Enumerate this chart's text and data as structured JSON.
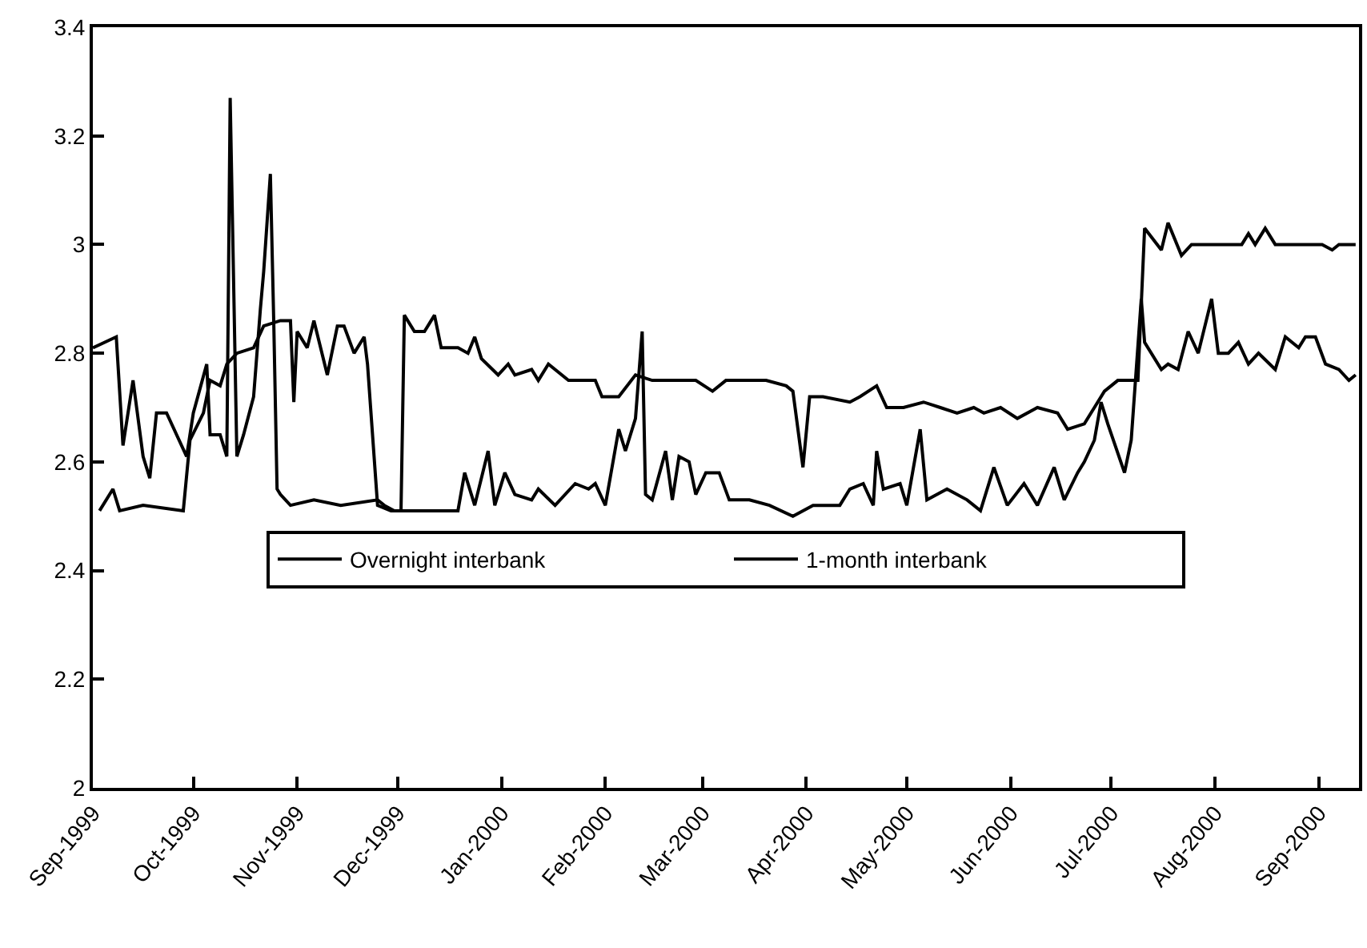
{
  "chart_data": {
    "type": "line",
    "xlim": [
      "1999-09-01",
      "2000-09-13"
    ],
    "ylim": [
      2,
      3.4
    ],
    "xticks": [
      {
        "value": "1999-09-01",
        "label": "Sep-1999"
      },
      {
        "value": "1999-10-01",
        "label": "Oct-1999"
      },
      {
        "value": "1999-11-01",
        "label": "Nov-1999"
      },
      {
        "value": "1999-12-01",
        "label": "Dec-1999"
      },
      {
        "value": "2000-01-01",
        "label": "Jan-2000"
      },
      {
        "value": "2000-02-01",
        "label": "Feb-2000"
      },
      {
        "value": "2000-03-01",
        "label": "Mar-2000"
      },
      {
        "value": "2000-04-01",
        "label": "Apr-2000"
      },
      {
        "value": "2000-05-01",
        "label": "May-2000"
      },
      {
        "value": "2000-06-01",
        "label": "Jun-2000"
      },
      {
        "value": "2000-07-01",
        "label": "Jul-2000"
      },
      {
        "value": "2000-08-01",
        "label": "Aug-2000"
      },
      {
        "value": "2000-09-01",
        "label": "Sep-2000"
      }
    ],
    "yticks": [
      2,
      2.2,
      2.4,
      2.6,
      2.8,
      3,
      3.2,
      3.4
    ],
    "grid": false,
    "legend": "center",
    "marker": "none",
    "line_style": "solid",
    "series": [
      {
        "name": "Overnight interbank",
        "color": "#000000",
        "x": [
          "1999-09-01",
          "1999-09-08",
          "1999-09-10",
          "1999-09-13",
          "1999-09-16",
          "1999-09-18",
          "1999-09-20",
          "1999-09-23",
          "1999-09-29",
          "1999-10-01",
          "1999-10-05",
          "1999-10-06",
          "1999-10-09",
          "1999-10-11",
          "1999-10-12",
          "1999-10-14",
          "1999-10-16",
          "1999-10-19",
          "1999-10-21",
          "1999-10-22",
          "1999-10-24",
          "1999-10-25",
          "1999-10-26",
          "1999-10-27",
          "1999-10-30",
          "1999-11-06",
          "1999-11-14",
          "1999-11-25",
          "1999-11-27",
          "1999-11-30",
          "1999-12-19",
          "1999-12-21",
          "1999-12-24",
          "1999-12-28",
          "1999-12-30",
          "2000-01-02",
          "2000-01-05",
          "2000-01-10",
          "2000-01-12",
          "2000-01-17",
          "2000-01-23",
          "2000-01-27",
          "2000-01-29",
          "2000-02-01",
          "2000-02-05",
          "2000-02-07",
          "2000-02-10",
          "2000-02-12",
          "2000-02-13",
          "2000-02-15",
          "2000-02-19",
          "2000-02-21",
          "2000-02-23",
          "2000-02-26",
          "2000-02-28",
          "2000-03-02",
          "2000-03-06",
          "2000-03-09",
          "2000-03-15",
          "2000-03-21",
          "2000-03-28",
          "2000-04-03",
          "2000-04-11",
          "2000-04-14",
          "2000-04-18",
          "2000-04-21",
          "2000-04-22",
          "2000-04-24",
          "2000-04-29",
          "2000-05-01",
          "2000-05-05",
          "2000-05-07",
          "2000-05-13",
          "2000-05-19",
          "2000-05-23",
          "2000-05-27",
          "2000-05-31",
          "2000-06-05",
          "2000-06-09",
          "2000-06-14",
          "2000-06-17",
          "2000-06-21",
          "2000-06-23",
          "2000-06-26",
          "2000-06-28",
          "2000-06-30",
          "2000-07-05",
          "2000-07-07",
          "2000-07-10",
          "2000-07-11",
          "2000-07-16",
          "2000-07-18",
          "2000-07-21",
          "2000-07-24",
          "2000-07-27",
          "2000-07-31",
          "2000-08-02",
          "2000-08-05",
          "2000-08-08",
          "2000-08-11",
          "2000-08-14",
          "2000-08-19",
          "2000-08-22",
          "2000-08-26",
          "2000-08-28",
          "2000-08-31",
          "2000-09-03",
          "2000-09-07",
          "2000-09-10",
          "2000-09-12"
        ],
        "values": [
          2.81,
          2.83,
          2.63,
          2.75,
          2.61,
          2.57,
          2.69,
          2.69,
          2.61,
          2.69,
          2.78,
          2.65,
          2.65,
          2.61,
          3.27,
          2.61,
          2.65,
          2.72,
          2.88,
          2.95,
          3.13,
          2.86,
          2.55,
          2.54,
          2.52,
          2.53,
          2.52,
          2.53,
          2.52,
          2.51,
          2.51,
          2.58,
          2.52,
          2.62,
          2.52,
          2.58,
          2.54,
          2.53,
          2.55,
          2.52,
          2.56,
          2.55,
          2.56,
          2.52,
          2.66,
          2.62,
          2.68,
          2.84,
          2.54,
          2.53,
          2.62,
          2.53,
          2.61,
          2.6,
          2.54,
          2.58,
          2.58,
          2.53,
          2.53,
          2.52,
          2.5,
          2.52,
          2.52,
          2.55,
          2.56,
          2.52,
          2.62,
          2.55,
          2.56,
          2.52,
          2.66,
          2.53,
          2.55,
          2.53,
          2.51,
          2.59,
          2.52,
          2.56,
          2.52,
          2.59,
          2.53,
          2.58,
          2.6,
          2.64,
          2.71,
          2.67,
          2.58,
          2.64,
          2.9,
          2.82,
          2.77,
          2.78,
          2.77,
          2.84,
          2.8,
          2.9,
          2.8,
          2.8,
          2.82,
          2.78,
          2.8,
          2.77,
          2.83,
          2.81,
          2.83,
          2.83,
          2.78,
          2.77,
          2.75,
          2.76
        ]
      },
      {
        "name": "1-month interbank",
        "color": "#000000",
        "x": [
          "1999-09-03",
          "1999-09-07",
          "1999-09-09",
          "1999-09-16",
          "1999-09-28",
          "1999-09-30",
          "1999-10-04",
          "1999-10-06",
          "1999-10-09",
          "1999-10-11",
          "1999-10-14",
          "1999-10-19",
          "1999-10-22",
          "1999-10-27",
          "1999-10-30",
          "1999-10-31",
          "1999-11-01",
          "1999-11-04",
          "1999-11-06",
          "1999-11-10",
          "1999-11-13",
          "1999-11-15",
          "1999-11-18",
          "1999-11-21",
          "1999-11-22",
          "1999-11-25",
          "1999-11-29",
          "1999-12-02",
          "1999-12-03",
          "1999-12-06",
          "1999-12-09",
          "1999-12-12",
          "1999-12-14",
          "1999-12-19",
          "1999-12-22",
          "1999-12-24",
          "1999-12-26",
          "1999-12-31",
          "2000-01-03",
          "2000-01-05",
          "2000-01-10",
          "2000-01-12",
          "2000-01-15",
          "2000-01-21",
          "2000-01-29",
          "2000-01-31",
          "2000-02-05",
          "2000-02-10",
          "2000-02-15",
          "2000-02-28",
          "2000-03-04",
          "2000-03-08",
          "2000-03-16",
          "2000-03-20",
          "2000-03-26",
          "2000-03-28",
          "2000-03-31",
          "2000-04-02",
          "2000-04-06",
          "2000-04-14",
          "2000-04-17",
          "2000-04-22",
          "2000-04-25",
          "2000-04-30",
          "2000-05-06",
          "2000-05-11",
          "2000-05-16",
          "2000-05-21",
          "2000-05-24",
          "2000-05-29",
          "2000-06-03",
          "2000-06-09",
          "2000-06-15",
          "2000-06-18",
          "2000-06-23",
          "2000-06-26",
          "2000-06-29",
          "2000-07-03",
          "2000-07-06",
          "2000-07-09",
          "2000-07-11",
          "2000-07-16",
          "2000-07-18",
          "2000-07-22",
          "2000-07-25",
          "2000-07-30",
          "2000-08-09",
          "2000-08-11",
          "2000-08-13",
          "2000-08-16",
          "2000-08-19",
          "2000-09-02",
          "2000-09-05",
          "2000-09-07",
          "2000-09-12"
        ],
        "values": [
          2.51,
          2.55,
          2.51,
          2.52,
          2.51,
          2.64,
          2.69,
          2.75,
          2.74,
          2.78,
          2.8,
          2.81,
          2.85,
          2.86,
          2.86,
          2.71,
          2.84,
          2.81,
          2.86,
          2.76,
          2.85,
          2.85,
          2.8,
          2.83,
          2.78,
          2.52,
          2.51,
          2.51,
          2.87,
          2.84,
          2.84,
          2.87,
          2.81,
          2.81,
          2.8,
          2.83,
          2.79,
          2.76,
          2.78,
          2.76,
          2.77,
          2.75,
          2.78,
          2.75,
          2.75,
          2.72,
          2.72,
          2.76,
          2.75,
          2.75,
          2.73,
          2.75,
          2.75,
          2.75,
          2.74,
          2.73,
          2.59,
          2.72,
          2.72,
          2.71,
          2.72,
          2.74,
          2.7,
          2.7,
          2.71,
          2.7,
          2.69,
          2.7,
          2.69,
          2.7,
          2.68,
          2.7,
          2.69,
          2.66,
          2.67,
          2.7,
          2.73,
          2.75,
          2.75,
          2.75,
          3.03,
          2.99,
          3.04,
          2.98,
          3,
          3,
          3,
          3.02,
          3,
          3.03,
          3,
          3,
          2.99,
          3,
          3
        ]
      }
    ]
  }
}
